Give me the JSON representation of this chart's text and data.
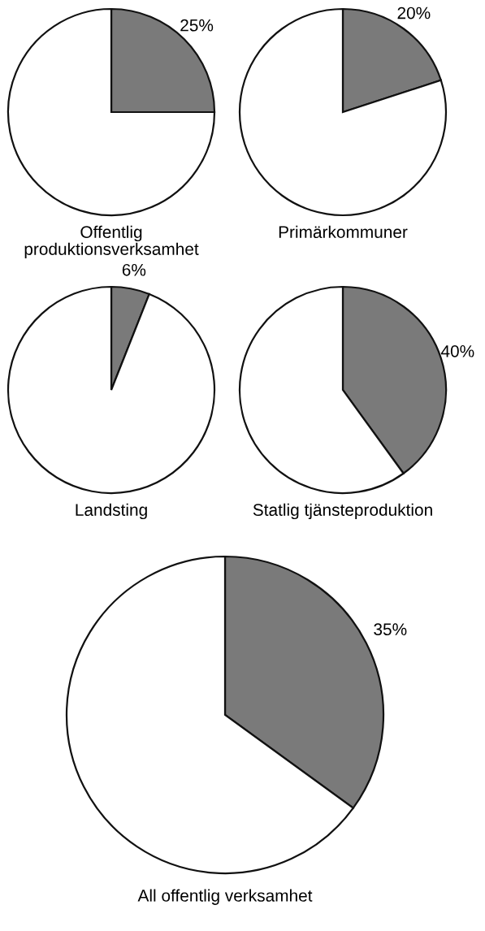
{
  "chart_data": [
    {
      "type": "pie",
      "title": "Offentlig\nproduktionsverksamhet",
      "categories": [
        null,
        null
      ],
      "values": [
        25,
        75
      ],
      "colors": [
        "#7a7a7a",
        "#ffffff"
      ],
      "value_labels": [
        "25%",
        null
      ]
    },
    {
      "type": "pie",
      "title": "Primärkommuner",
      "categories": [
        null,
        null
      ],
      "values": [
        20,
        80
      ],
      "colors": [
        "#7a7a7a",
        "#ffffff"
      ],
      "value_labels": [
        "20%",
        null
      ]
    },
    {
      "type": "pie",
      "title": "Landsting",
      "categories": [
        null,
        null
      ],
      "values": [
        6,
        94
      ],
      "colors": [
        "#7a7a7a",
        "#ffffff"
      ],
      "value_labels": [
        "6%",
        null
      ]
    },
    {
      "type": "pie",
      "title": "Statlig tjänsteproduktion",
      "categories": [
        null,
        null
      ],
      "values": [
        40,
        60
      ],
      "colors": [
        "#7a7a7a",
        "#ffffff"
      ],
      "value_labels": [
        "40%",
        null
      ]
    },
    {
      "type": "pie",
      "title": "All offentlig verksamhet",
      "categories": [
        null,
        null
      ],
      "values": [
        35,
        65
      ],
      "colors": [
        "#7a7a7a",
        "#ffffff"
      ],
      "value_labels": [
        "35%",
        null
      ]
    }
  ]
}
